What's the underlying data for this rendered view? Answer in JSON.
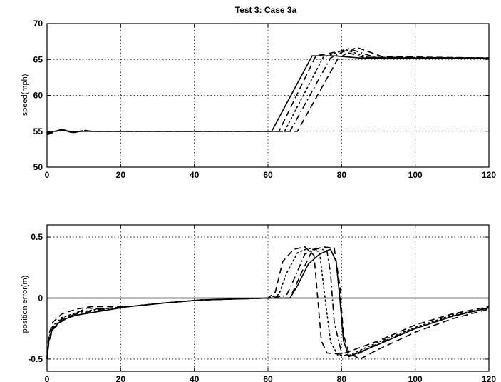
{
  "chart_data": [
    {
      "type": "line",
      "title": "Test 3: Case 3a",
      "xlabel": "",
      "ylabel": "speed(mph)",
      "xlim": [
        0,
        120
      ],
      "ylim": [
        50,
        70
      ],
      "xticks": [
        0,
        20,
        40,
        60,
        80,
        100,
        120
      ],
      "yticks": [
        50,
        55,
        60,
        65,
        70
      ],
      "xtick_labels": [
        "0",
        "20",
        "40",
        "60",
        "80",
        "100",
        "120"
      ],
      "ytick_labels": [
        "50",
        "55",
        "60",
        "65",
        "70"
      ],
      "grid": true,
      "series": [
        {
          "style": "solid",
          "x": [
            0,
            4,
            7,
            10,
            12,
            61,
            72,
            78,
            85,
            120
          ],
          "y": [
            54.9,
            55.1,
            54.95,
            55.0,
            55.0,
            55.0,
            65.5,
            65.5,
            65.2,
            65.2
          ]
        },
        {
          "style": "dashed",
          "x": [
            0,
            4,
            7,
            10,
            12,
            63,
            73,
            80,
            86,
            120
          ],
          "y": [
            54.8,
            55.2,
            54.9,
            55.05,
            55.0,
            55.0,
            65.5,
            66.2,
            65.3,
            65.2
          ]
        },
        {
          "style": "dotted",
          "x": [
            0,
            4,
            7,
            10,
            12,
            64.5,
            75,
            81,
            87,
            120
          ],
          "y": [
            54.7,
            55.2,
            54.85,
            55.1,
            55.0,
            55.0,
            65.3,
            66.4,
            65.3,
            65.2
          ]
        },
        {
          "style": "dashdot",
          "x": [
            0,
            4,
            7,
            10,
            12,
            66,
            77,
            82,
            89,
            120
          ],
          "y": [
            54.6,
            55.3,
            54.8,
            55.1,
            55.0,
            55.0,
            65.2,
            66.5,
            65.3,
            65.2
          ]
        },
        {
          "style": "dashed",
          "x": [
            0,
            4,
            7,
            10,
            12,
            68,
            79,
            84,
            91,
            120
          ],
          "y": [
            54.5,
            55.3,
            54.75,
            55.15,
            55.0,
            55.0,
            65.1,
            66.7,
            65.4,
            65.2
          ]
        }
      ]
    },
    {
      "type": "line",
      "title": "",
      "xlabel": "",
      "ylabel": "position error(m)",
      "xlim": [
        0,
        120
      ],
      "ylim": [
        -0.6,
        0.6
      ],
      "xticks": [
        0,
        20,
        40,
        60,
        80,
        100,
        120
      ],
      "yticks": [
        -0.5,
        0,
        0.5
      ],
      "xtick_labels": [
        "0",
        "20",
        "40",
        "60",
        "80",
        "100",
        "120"
      ],
      "ytick_labels": [
        "-0.5",
        "0",
        "0.5"
      ],
      "grid": true,
      "baseline_y": 0,
      "series": [
        {
          "style": "solid",
          "x": [
            0,
            0.5,
            1.5,
            4,
            8,
            14,
            22,
            32,
            42,
            60,
            66,
            68,
            71,
            74,
            77,
            78.5,
            79.5,
            80.5,
            82,
            90,
            100,
            110,
            120
          ],
          "y": [
            -0.5,
            -0.35,
            -0.25,
            -0.18,
            -0.14,
            -0.11,
            -0.07,
            -0.04,
            -0.015,
            0,
            0.0,
            0.1,
            0.28,
            0.36,
            0.4,
            0.3,
            0.0,
            -0.35,
            -0.48,
            -0.38,
            -0.25,
            -0.15,
            -0.08
          ]
        },
        {
          "style": "dashed",
          "x": [
            0,
            0.5,
            1.5,
            4,
            8,
            12,
            16,
            22,
            32,
            42,
            60,
            62,
            64,
            67,
            70,
            72.5,
            73.5,
            74.5,
            76,
            80,
            90,
            100,
            110,
            120
          ],
          "y": [
            -0.45,
            -0.3,
            -0.2,
            -0.13,
            -0.09,
            -0.07,
            -0.07,
            -0.07,
            -0.04,
            -0.015,
            0,
            0.05,
            0.3,
            0.4,
            0.42,
            0.35,
            0.0,
            -0.35,
            -0.45,
            -0.46,
            -0.35,
            -0.22,
            -0.13,
            -0.07
          ]
        },
        {
          "style": "dotted",
          "x": [
            0,
            0.5,
            1.5,
            4,
            8,
            14,
            22,
            32,
            42,
            60,
            63,
            65,
            68,
            71,
            74,
            75.5,
            77,
            79,
            82,
            90,
            100,
            110,
            120
          ],
          "y": [
            -0.48,
            -0.33,
            -0.23,
            -0.16,
            -0.12,
            -0.09,
            -0.07,
            -0.04,
            -0.015,
            0,
            0.03,
            0.2,
            0.37,
            0.41,
            0.38,
            0.0,
            -0.36,
            -0.47,
            -0.47,
            -0.36,
            -0.24,
            -0.14,
            -0.08
          ]
        },
        {
          "style": "dashdot",
          "x": [
            0,
            0.5,
            1.5,
            4,
            8,
            14,
            22,
            32,
            42,
            60,
            65,
            67,
            70,
            73,
            76,
            77,
            78,
            80,
            83,
            90,
            100,
            110,
            120
          ],
          "y": [
            -0.49,
            -0.34,
            -0.24,
            -0.17,
            -0.13,
            -0.1,
            -0.07,
            -0.04,
            -0.015,
            0,
            0.02,
            0.15,
            0.36,
            0.41,
            0.39,
            0.2,
            -0.2,
            -0.45,
            -0.48,
            -0.37,
            -0.25,
            -0.15,
            -0.08
          ]
        },
        {
          "style": "dashed",
          "x": [
            0,
            0.5,
            1.5,
            4,
            8,
            11,
            14,
            22,
            32,
            42,
            60,
            66,
            69,
            72,
            75,
            78,
            79.5,
            80.5,
            82,
            85,
            90,
            100,
            110,
            120
          ],
          "y": [
            -0.5,
            -0.36,
            -0.26,
            -0.19,
            -0.12,
            -0.08,
            -0.09,
            -0.07,
            -0.04,
            -0.015,
            0,
            0.0,
            0.2,
            0.39,
            0.42,
            0.41,
            0.1,
            -0.3,
            -0.45,
            -0.5,
            -0.42,
            -0.28,
            -0.17,
            -0.09
          ]
        }
      ]
    }
  ]
}
